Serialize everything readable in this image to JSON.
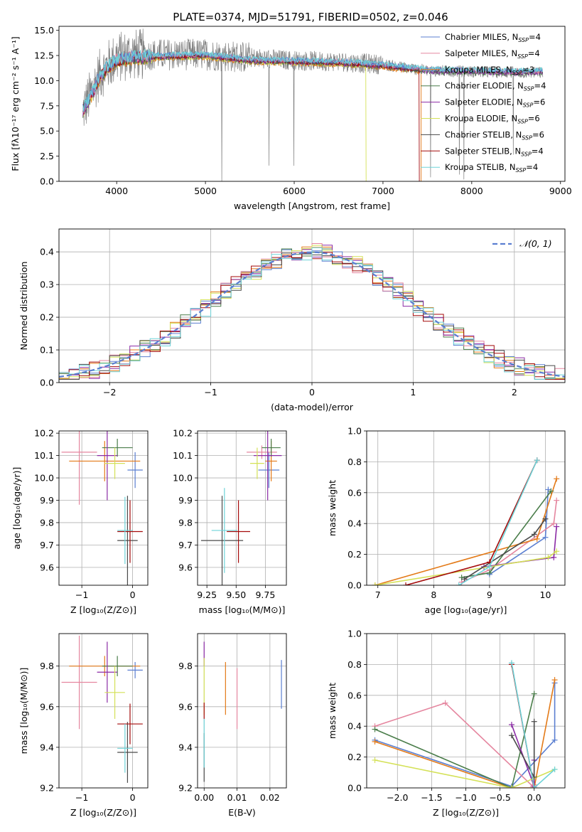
{
  "title": "PLATE=0374, MJD=51791, FIBERID=0502, z=0.046",
  "colors": {
    "c1": "#5b7fd1",
    "c2": "#e37a18",
    "c3": "#4a7d4a",
    "c4": "#e5869f",
    "c5": "#8b2aa5",
    "c6": "#d4e157",
    "c7": "#4a4a4a",
    "c8": "#a40a0a",
    "c9": "#6ed3d8",
    "gray": "#7f7f7f"
  },
  "chart_data": [
    {
      "id": "spectrum",
      "type": "line",
      "xlabel": "wavelength [Angstrom, rest frame]",
      "ylabel": "Flux [fλ10⁻¹⁷ erg cm⁻² s⁻¹ A⁻¹]",
      "xlim": [
        3350,
        9050
      ],
      "ylim": [
        0,
        15.4
      ],
      "xticks": [
        4000,
        5000,
        6000,
        7000,
        8000,
        9000
      ],
      "yticks": [
        0.0,
        2.5,
        5.0,
        7.5,
        10.0,
        12.5,
        15.0
      ],
      "xtick_labels": [
        "4000",
        "5000",
        "6000",
        "7000",
        "8000",
        "9000"
      ],
      "ytick_labels": [
        "0.0",
        "2.5",
        "5.0",
        "7.5",
        "10.0",
        "12.5",
        "15.0"
      ],
      "legend_position": "top-right",
      "legend": [
        {
          "name": "Chabrier MILES, N",
          "sub": "SSP",
          "post": "=4",
          "color": "c1"
        },
        {
          "name": "Salpeter MILES, N",
          "sub": "SSP",
          "post": "=4",
          "color": "c4"
        },
        {
          "name": "Kroupa MILES, N",
          "sub": "SSP",
          "post": "=3",
          "color": "c2"
        },
        {
          "name": "Chabrier ELODIE, N",
          "sub": "SSP",
          "post": "=4",
          "color": "c3"
        },
        {
          "name": "Salpeter ELODIE, N",
          "sub": "SSP",
          "post": "=6",
          "color": "c5"
        },
        {
          "name": "Kroupa ELODIE, N",
          "sub": "SSP",
          "post": "=6",
          "color": "c6"
        },
        {
          "name": "Chabrier STELIB, N",
          "sub": "SSP",
          "post": "=6",
          "color": "c7"
        },
        {
          "name": "Salpeter STELIB, N",
          "sub": "SSP",
          "post": "=4",
          "color": "c8"
        },
        {
          "name": "Kroupa STELIB, N",
          "sub": "SSP",
          "post": "=4",
          "color": "c9"
        }
      ],
      "data_envelope": {
        "x": [
          3620,
          3700,
          3800,
          3900,
          4000,
          4200,
          4500,
          5000,
          5500,
          6000,
          6500,
          7000,
          7500,
          8000,
          8500,
          8800
        ],
        "y": [
          7.0,
          8.5,
          10.5,
          11.5,
          12.3,
          12.6,
          12.6,
          12.6,
          12.3,
          12.0,
          11.9,
          11.6,
          11.0,
          10.9,
          10.8,
          10.8
        ]
      },
      "model_curve": {
        "x": [
          3620,
          3700,
          3800,
          3900,
          4000,
          4200,
          4500,
          5000,
          5500,
          6000,
          6500,
          7000,
          7500,
          8000,
          8500,
          8800
        ],
        "y": [
          7.0,
          8.3,
          10.2,
          11.3,
          12.0,
          12.3,
          12.4,
          12.5,
          12.0,
          11.9,
          11.8,
          11.5,
          11.0,
          10.9,
          10.8,
          10.9
        ]
      }
    },
    {
      "id": "residuals",
      "type": "line",
      "xlabel": "(data-model)/error",
      "ylabel": "Normed distribution",
      "xlim": [
        -2.5,
        2.5
      ],
      "ylim": [
        0,
        0.47
      ],
      "xticks": [
        -2,
        -1,
        0,
        1,
        2
      ],
      "yticks": [
        0.0,
        0.1,
        0.2,
        0.3,
        0.4
      ],
      "xtick_labels": [
        "−2",
        "−1",
        "0",
        "1",
        "2"
      ],
      "ytick_labels": [
        "0.0",
        "0.1",
        "0.2",
        "0.3",
        "0.4"
      ],
      "grid": true,
      "legend_position": "top-right",
      "legend": [
        {
          "name": "𝒩(0, 1)",
          "color": "c1"
        }
      ],
      "bin_width": 0.1,
      "bin_start": -2.5
    },
    {
      "id": "age-vs-Z",
      "type": "scatter",
      "xlabel": "Z [log₁₀(Z/Z⊙)]",
      "ylabel": "age  [log₁₀(age/yr)]",
      "xlim": [
        -1.45,
        0.3
      ],
      "ylim": [
        9.52,
        10.21
      ],
      "xticks": [
        -1,
        0
      ],
      "yticks": [
        9.6,
        9.7,
        9.8,
        9.9,
        10.0,
        10.1,
        10.2
      ],
      "xtick_labels": [
        "−1",
        "0"
      ],
      "ytick_labels": [
        "9.6",
        "9.7",
        "9.8",
        "9.9",
        "10.0",
        "10.1",
        "10.2"
      ],
      "grid": true,
      "points": [
        {
          "color": "c1",
          "x": 0.05,
          "y": 10.035,
          "xerr": 0.15,
          "yerr": 0.08
        },
        {
          "color": "c4",
          "x": -1.05,
          "y": 10.115,
          "xerr": 0.35,
          "yerr": 0.235
        },
        {
          "color": "c2",
          "x": -0.55,
          "y": 10.075,
          "xerr": 0.7,
          "yerr": 0.09
        },
        {
          "color": "c3",
          "x": -0.3,
          "y": 10.135,
          "xerr": 0.3,
          "yerr": 0.04
        },
        {
          "color": "c5",
          "x": -0.5,
          "y": 10.1,
          "xerr": 0.2,
          "yerr": 0.2
        },
        {
          "color": "c6",
          "x": -0.35,
          "y": 10.065,
          "xerr": 0.2,
          "yerr": 0.07
        },
        {
          "color": "c7",
          "x": -0.1,
          "y": 9.72,
          "xerr": 0.2,
          "yerr": 0.2
        },
        {
          "color": "c8",
          "x": -0.05,
          "y": 9.76,
          "xerr": 0.25,
          "yerr": 0.14
        },
        {
          "color": "c9",
          "x": -0.15,
          "y": 9.765,
          "xerr": 0.15,
          "yerr": 0.15
        }
      ]
    },
    {
      "id": "age-vs-mass",
      "type": "scatter",
      "xlabel": "mass [log₁₀(M/M⊙)]",
      "ylabel": "",
      "xlim": [
        9.17,
        9.93
      ],
      "ylim": [
        9.52,
        10.21
      ],
      "xticks": [
        9.25,
        9.5,
        9.75
      ],
      "yticks": [
        9.6,
        9.7,
        9.8,
        9.9,
        10.0,
        10.1,
        10.2
      ],
      "xtick_labels": [
        "9.25",
        "9.50",
        "9.75"
      ],
      "ytick_labels": [
        "9.6",
        "9.7",
        "9.8",
        "9.9",
        "10.0",
        "10.1",
        "10.2"
      ],
      "grid": true,
      "points": [
        {
          "color": "c1",
          "x": 9.78,
          "y": 10.035,
          "xerr": 0.09,
          "yerr": 0.08
        },
        {
          "color": "c4",
          "x": 9.72,
          "y": 10.115,
          "xerr": 0.13,
          "yerr": 0.03
        },
        {
          "color": "c2",
          "x": 9.8,
          "y": 10.075,
          "xerr": 0.05,
          "yerr": 0.09
        },
        {
          "color": "c3",
          "x": 9.8,
          "y": 10.135,
          "xerr": 0.08,
          "yerr": 0.04
        },
        {
          "color": "c5",
          "x": 9.77,
          "y": 10.1,
          "xerr": 0.12,
          "yerr": 0.2
        },
        {
          "color": "c6",
          "x": 9.68,
          "y": 10.065,
          "xerr": 0.06,
          "yerr": 0.07
        },
        {
          "color": "c7",
          "x": 9.38,
          "y": 9.72,
          "xerr": 0.18,
          "yerr": 0.2
        },
        {
          "color": "c8",
          "x": 9.52,
          "y": 9.76,
          "xerr": 0.1,
          "yerr": 0.14
        },
        {
          "color": "c9",
          "x": 9.4,
          "y": 9.765,
          "xerr": 0.11,
          "yerr": 0.19
        }
      ]
    },
    {
      "id": "weight-vs-age",
      "type": "line",
      "xlabel": "age  [log₁₀(age/yr)]",
      "ylabel": "mass weight",
      "xlim": [
        6.8,
        10.35
      ],
      "ylim": [
        0,
        1.0
      ],
      "xticks": [
        7,
        8,
        9,
        10
      ],
      "yticks": [
        0.0,
        0.2,
        0.4,
        0.6,
        0.8,
        1.0
      ],
      "xtick_labels": [
        "7",
        "8",
        "9",
        "10"
      ],
      "ytick_labels": [
        "0.0",
        "0.2",
        "0.4",
        "0.6",
        "0.8",
        "1.0"
      ],
      "grid": true,
      "series": [
        {
          "color": "c1",
          "x": [
            9.0,
            10.0,
            10.05
          ],
          "y": [
            0.07,
            0.31,
            0.62
          ]
        },
        {
          "color": "c4",
          "x": [
            8.5,
            9.0,
            10.15,
            10.2
          ],
          "y": [
            0.02,
            0.1,
            0.4,
            0.55
          ]
        },
        {
          "color": "c2",
          "x": [
            6.95,
            9.85,
            10.2
          ],
          "y": [
            0.0,
            0.3,
            0.69
          ]
        },
        {
          "color": "c3",
          "x": [
            8.5,
            9.0,
            10.1
          ],
          "y": [
            0.05,
            0.08,
            0.61
          ]
        },
        {
          "color": "c5",
          "x": [
            8.9,
            10.15,
            10.2
          ],
          "y": [
            0.12,
            0.18,
            0.38
          ]
        },
        {
          "color": "c6",
          "x": [
            6.95,
            9.0,
            10.05,
            10.2
          ],
          "y": [
            0.0,
            0.12,
            0.18,
            0.22
          ]
        },
        {
          "color": "c7",
          "x": [
            8.55,
            9.8,
            10.0
          ],
          "y": [
            0.04,
            0.33,
            0.43
          ]
        },
        {
          "color": "c8",
          "x": [
            7.5,
            9.0,
            9.85
          ],
          "y": [
            0.0,
            0.15,
            0.81
          ]
        },
        {
          "color": "c9",
          "x": [
            8.45,
            9.0,
            9.85
          ],
          "y": [
            0.0,
            0.12,
            0.81
          ]
        }
      ]
    },
    {
      "id": "mass-vs-Z",
      "type": "scatter",
      "xlabel": "Z [log₁₀(Z/Z⊙)]",
      "ylabel": "mass [log₁₀(M/M⊙)]",
      "xlim": [
        -1.45,
        0.3
      ],
      "ylim": [
        9.2,
        9.96
      ],
      "xticks": [
        -1,
        0
      ],
      "yticks": [
        9.2,
        9.4,
        9.6,
        9.8
      ],
      "xtick_labels": [
        "−1",
        "0"
      ],
      "ytick_labels": [
        "9.2",
        "9.4",
        "9.6",
        "9.8"
      ],
      "grid": true,
      "points": [
        {
          "color": "c1",
          "x": 0.05,
          "y": 9.78,
          "xerr": 0.15,
          "yerr": 0.04
        },
        {
          "color": "c4",
          "x": -1.05,
          "y": 9.72,
          "xerr": 0.35,
          "yerr": 0.23
        },
        {
          "color": "c2",
          "x": -0.55,
          "y": 9.8,
          "xerr": 0.7,
          "yerr": 0.05
        },
        {
          "color": "c3",
          "x": -0.3,
          "y": 9.8,
          "xerr": 0.3,
          "yerr": 0.05
        },
        {
          "color": "c5",
          "x": -0.5,
          "y": 9.77,
          "xerr": 0.2,
          "yerr": 0.15
        },
        {
          "color": "c6",
          "x": -0.35,
          "y": 9.67,
          "xerr": 0.2,
          "yerr": 0.13
        },
        {
          "color": "c7",
          "x": -0.1,
          "y": 9.375,
          "xerr": 0.2,
          "yerr": 0.15
        },
        {
          "color": "c8",
          "x": -0.05,
          "y": 9.515,
          "xerr": 0.25,
          "yerr": 0.1
        },
        {
          "color": "c9",
          "x": -0.15,
          "y": 9.395,
          "xerr": 0.15,
          "yerr": 0.12
        }
      ]
    },
    {
      "id": "mass-vs-EBV",
      "type": "scatter",
      "xlabel": "E(B-V)",
      "ylabel": "",
      "xlim": [
        -0.002,
        0.025
      ],
      "ylim": [
        9.2,
        9.96
      ],
      "xticks": [
        0.0,
        0.01,
        0.02
      ],
      "yticks": [
        9.2,
        9.4,
        9.6,
        9.8
      ],
      "xtick_labels": [
        "0.00",
        "0.01",
        "0.02"
      ],
      "ytick_labels": [
        "9.2",
        "9.4",
        "9.6",
        "9.8"
      ],
      "grid": true,
      "points": [
        {
          "color": "c1",
          "x": 0.0235,
          "y": 9.71,
          "xerr": 0,
          "yerr": 0.12
        },
        {
          "color": "c4",
          "x": 0.01,
          "y": 9.64,
          "xerr": 0,
          "yerr": 0.15
        },
        {
          "color": "c2",
          "x": 0.0065,
          "y": 9.69,
          "xerr": 0,
          "yerr": 0.13
        },
        {
          "color": "c5",
          "x": 0.0,
          "y": 9.86,
          "xerr": 0,
          "yerr": 0.06
        },
        {
          "color": "c6",
          "x": 0.0,
          "y": 9.7,
          "xerr": 0,
          "yerr": 0.14
        },
        {
          "color": "c8",
          "x": 0.0,
          "y": 9.58,
          "xerr": 0,
          "yerr": 0.04
        },
        {
          "color": "c7",
          "x": 0.0,
          "y": 9.35,
          "xerr": 0,
          "yerr": 0.12
        },
        {
          "color": "c9",
          "x": 0.0,
          "y": 9.42,
          "xerr": 0,
          "yerr": 0.12
        }
      ]
    },
    {
      "id": "weight-vs-Z",
      "type": "line",
      "xlabel": "Z [log₁₀(Z/Z⊙)]",
      "ylabel": "mass weight",
      "xlim": [
        -2.45,
        0.45
      ],
      "ylim": [
        0,
        1.0
      ],
      "xticks": [
        -2.0,
        -1.5,
        -1.0,
        -0.5,
        0.0
      ],
      "yticks": [
        0.0,
        0.2,
        0.4,
        0.6,
        0.8,
        1.0
      ],
      "xtick_labels": [
        "−2.0",
        "−1.5",
        "−1.0",
        "−0.5",
        "0.0"
      ],
      "ytick_labels": [
        "0.0",
        "0.2",
        "0.4",
        "0.6",
        "0.8",
        "1.0"
      ],
      "grid": true,
      "series": [
        {
          "color": "c1",
          "x": [
            -2.33,
            -0.33,
            0.3,
            0.3
          ],
          "y": [
            0.31,
            0.01,
            0.31,
            0.68
          ]
        },
        {
          "color": "c4",
          "x": [
            -2.33,
            -1.3,
            -0.02,
            0.0
          ],
          "y": [
            0.4,
            0.55,
            0.01,
            0.02
          ]
        },
        {
          "color": "c2",
          "x": [
            -2.33,
            -0.33,
            0.0,
            0.3
          ],
          "y": [
            0.3,
            0.0,
            0.0,
            0.7
          ]
        },
        {
          "color": "c3",
          "x": [
            -2.33,
            -0.33,
            0.0
          ],
          "y": [
            0.38,
            0.0,
            0.61
          ]
        },
        {
          "color": "c5",
          "x": [
            -0.33,
            0.0,
            0.0
          ],
          "y": [
            0.41,
            0.01,
            0.18
          ]
        },
        {
          "color": "c6",
          "x": [
            -2.33,
            -0.33,
            0.3
          ],
          "y": [
            0.18,
            0.0,
            0.12
          ]
        },
        {
          "color": "c7",
          "x": [
            -0.33,
            0.0,
            0.0
          ],
          "y": [
            0.34,
            0.07,
            0.43
          ]
        },
        {
          "color": "c8",
          "x": [
            -0.33,
            0.0
          ],
          "y": [
            0.8,
            0.0
          ]
        },
        {
          "color": "c9",
          "x": [
            -0.33,
            0.0,
            0.3
          ],
          "y": [
            0.81,
            0.0,
            0.12
          ]
        }
      ]
    }
  ]
}
